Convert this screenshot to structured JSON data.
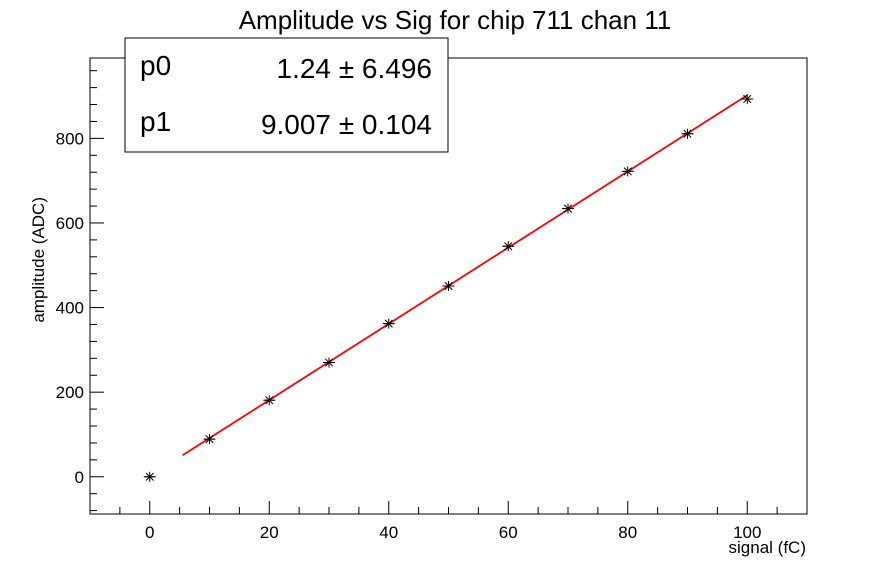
{
  "chart_data": {
    "type": "scatter",
    "title": "Amplitude vs Sig for chip 711 chan 11",
    "xlabel": "signal (fC)",
    "ylabel": "amplitude (ADC)",
    "xlim": [
      -10,
      110
    ],
    "ylim": [
      -88,
      990
    ],
    "x_ticks": [
      0,
      20,
      40,
      60,
      80,
      100
    ],
    "y_ticks": [
      0,
      200,
      400,
      600,
      800
    ],
    "grid": false,
    "legend": "none",
    "series": [
      {
        "marker": "star",
        "color": "#000000",
        "x": [
          0,
          10,
          20,
          30,
          40,
          50,
          60,
          70,
          80,
          90,
          100
        ],
        "y": [
          0,
          89,
          181,
          270,
          362,
          451,
          545,
          634,
          722,
          811,
          893
        ],
        "x_err": [
          1,
          1,
          1,
          1,
          1,
          1,
          1,
          1,
          1,
          1,
          1
        ]
      }
    ],
    "fit": {
      "type": "linear",
      "color": "#ff0000",
      "x_range": [
        5.5,
        100
      ],
      "intercept": 1.24,
      "slope": 9.007
    },
    "stats_box": {
      "position": "top-left",
      "rows": [
        {
          "name": "p0",
          "value": "1.24 ± 6.496"
        },
        {
          "name": "p1",
          "value": "9.007 ± 0.104"
        }
      ]
    }
  }
}
